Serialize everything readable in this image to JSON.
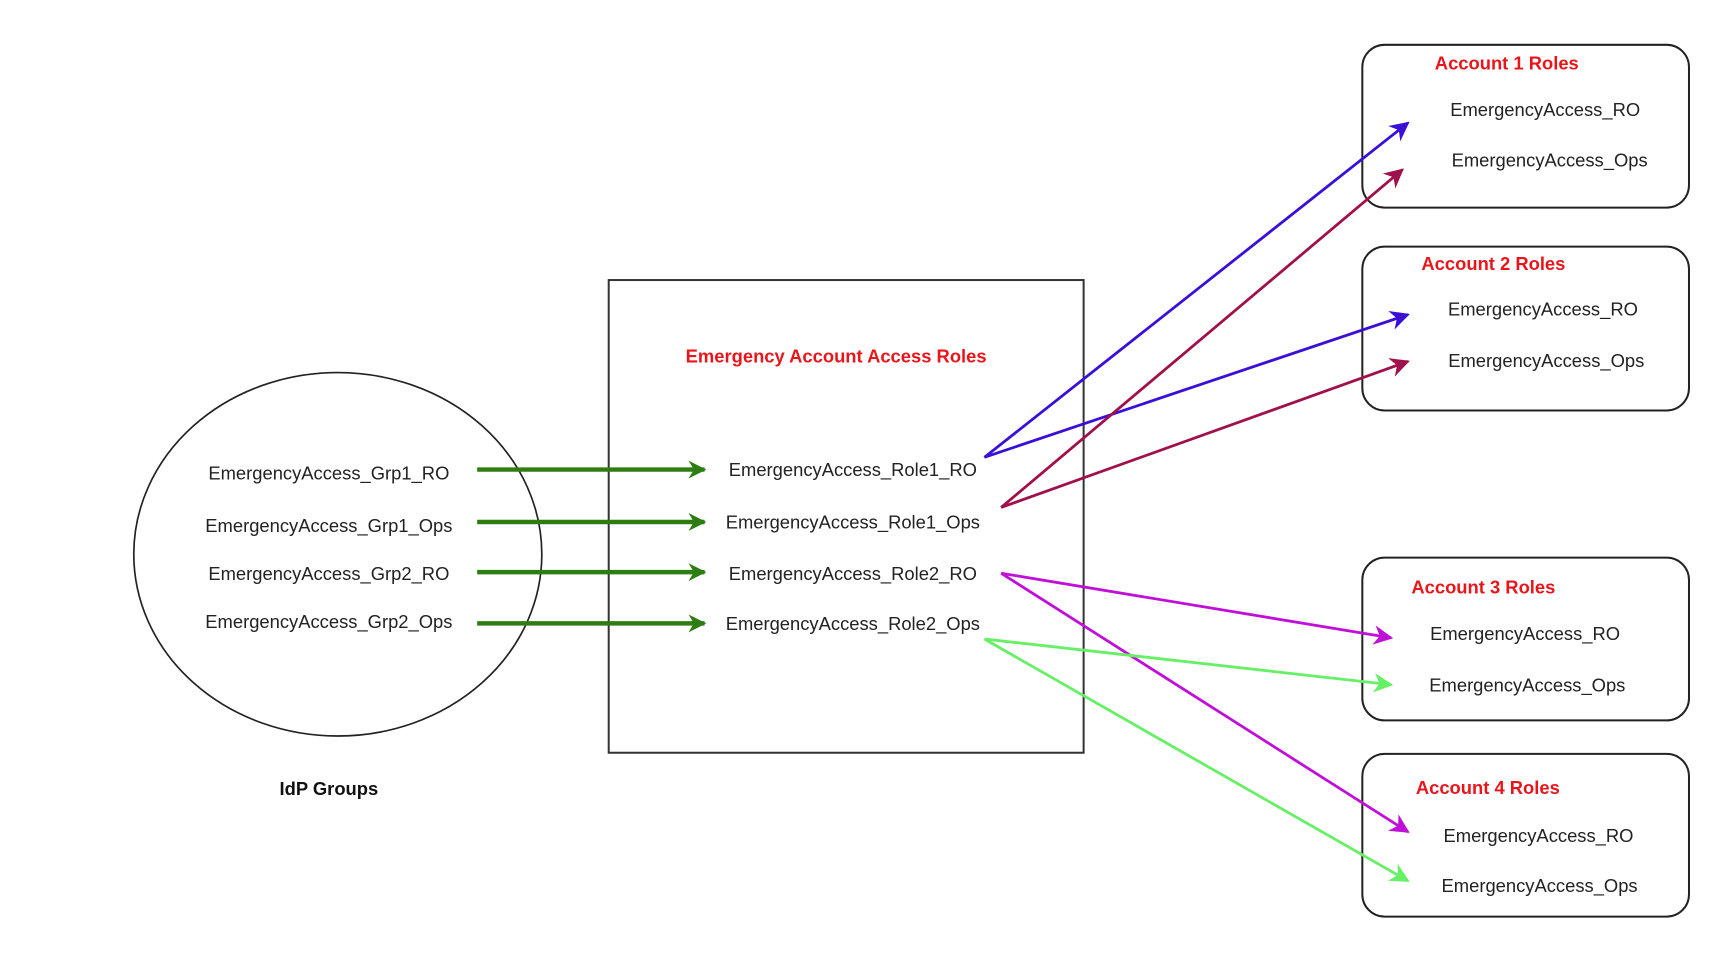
{
  "idp": {
    "caption": "IdP Groups",
    "groups": [
      "EmergencyAccess_Grp1_RO",
      "EmergencyAccess_Grp1_Ops",
      "EmergencyAccess_Grp2_RO",
      "EmergencyAccess_Grp2_Ops"
    ]
  },
  "center": {
    "title": "Emergency Account Access Roles",
    "roles": [
      "EmergencyAccess_Role1_RO",
      "EmergencyAccess_Role1_Ops",
      "EmergencyAccess_Role2_RO",
      "EmergencyAccess_Role2_Ops"
    ]
  },
  "accounts": [
    {
      "title": "Account 1 Roles",
      "roles": [
        "EmergencyAccess_RO",
        "EmergencyAccess_Ops"
      ]
    },
    {
      "title": "Account 2 Roles",
      "roles": [
        "EmergencyAccess_RO",
        "EmergencyAccess_Ops"
      ]
    },
    {
      "title": "Account 3 Roles",
      "roles": [
        "EmergencyAccess_RO",
        "EmergencyAccess_Ops"
      ]
    },
    {
      "title": "Account 4 Roles",
      "roles": [
        "EmergencyAccess_RO",
        "EmergencyAccess_Ops"
      ]
    }
  ],
  "colors": {
    "group_arrow": "#2e7d12",
    "role1_ro": "#3a10d8",
    "role1_ops": "#a0104a",
    "role2_ro": "#c010d8",
    "role2_ops": "#66f066",
    "title_red": "#e8161b"
  }
}
